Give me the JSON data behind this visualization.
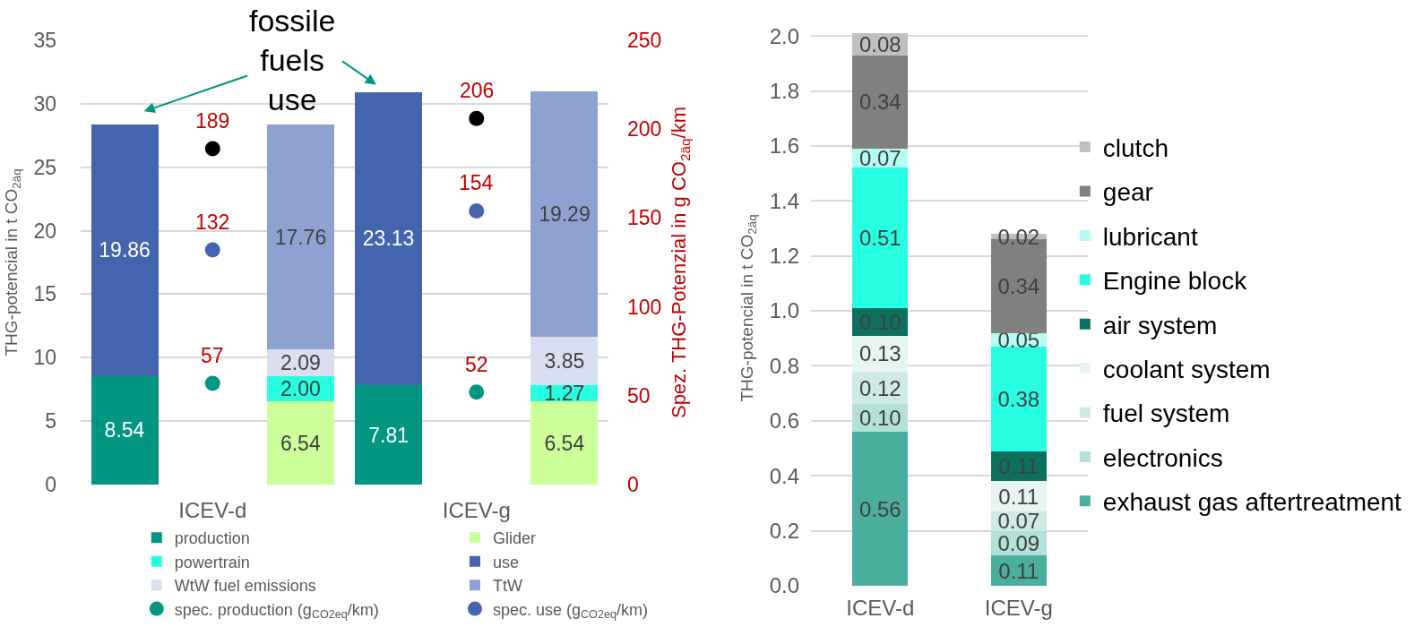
{
  "chart_data": [
    {
      "type": "bar",
      "stacked": true,
      "categories": [
        null,
        "ICEV-d",
        null,
        null,
        "ICEV-g",
        null
      ],
      "ylabel": "THG-potencial in t CO$_{2äq}$",
      "y2label": "Spez. THG-Potenzial in g CO$_{2äq}$/km",
      "ylim": [
        0,
        35
      ],
      "yticks": [
        0,
        5,
        10,
        15,
        20,
        25,
        30,
        35
      ],
      "y2lim": [
        0,
        250
      ],
      "y2ticks": [
        0,
        50,
        100,
        150,
        200,
        250
      ],
      "grid": "y",
      "legend": "bottom",
      "annotations": [
        "fossile\nfuels\nuse"
      ],
      "series": [
        {
          "name": "production",
          "color": "#009681",
          "values": [
            8.54,
            null,
            null,
            7.81,
            null,
            null
          ],
          "value_labels": [
            "8.54",
            null,
            null,
            "7.81",
            null,
            null
          ]
        },
        {
          "name": "Glider",
          "color": "#ccff99",
          "values": [
            null,
            null,
            6.54,
            null,
            null,
            6.54
          ],
          "value_labels": [
            null,
            null,
            "6.54",
            null,
            null,
            "6.54"
          ]
        },
        {
          "name": "powertrain",
          "color": "#26ffe0",
          "values": [
            null,
            null,
            2.0,
            null,
            null,
            1.27
          ],
          "value_labels": [
            null,
            null,
            "2.00",
            null,
            null,
            "1.27"
          ]
        },
        {
          "name": "use",
          "color": "#4464ad",
          "values": [
            19.86,
            null,
            null,
            23.13,
            null,
            null
          ],
          "value_labels": [
            "19.86",
            null,
            null,
            "23.13",
            null,
            null
          ]
        },
        {
          "name": "WtW fuel emissions",
          "color": "#d9dff0",
          "values": [
            null,
            null,
            2.09,
            null,
            null,
            3.85
          ],
          "value_labels": [
            null,
            null,
            "2.09",
            null,
            null,
            "3.85"
          ]
        },
        {
          "name": "TtW",
          "color": "#8ea2d1",
          "values": [
            null,
            null,
            17.76,
            null,
            null,
            19.29
          ],
          "value_labels": [
            null,
            null,
            "17.76",
            null,
            null,
            "19.29"
          ]
        },
        {
          "name": "spec. production (g$_{CO2eq}$/km)",
          "type": "scatter",
          "axis": "y2",
          "marker": "circle",
          "color": "#009681",
          "values": [
            null,
            57,
            null,
            null,
            52,
            null
          ],
          "value_labels": [
            null,
            "57",
            null,
            null,
            "52",
            null
          ]
        },
        {
          "name": "spec. use (g$_{CO2eq}$/km)",
          "type": "scatter",
          "axis": "y2",
          "marker": "circle",
          "color": "#4464ad",
          "values": [
            null,
            132,
            null,
            null,
            154,
            null
          ],
          "value_labels": [
            null,
            "132",
            null,
            null,
            "154",
            null
          ]
        },
        {
          "type": "scatter",
          "axis": "y2",
          "marker": "circle",
          "color": "#000000",
          "values": [
            null,
            189,
            null,
            null,
            206,
            null
          ],
          "value_labels": [
            null,
            "189",
            null,
            null,
            "206",
            null
          ]
        }
      ]
    },
    {
      "type": "bar",
      "stacked": true,
      "categories": [
        "ICEV-d",
        "ICEV-g"
      ],
      "ylabel": "THG-potencial in t CO$_{2äq}$",
      "ylim": [
        0,
        2.02
      ],
      "yticks": [
        {
          "value": 0,
          "label": "0.0"
        },
        0.2,
        0.4,
        0.6,
        0.8,
        {
          "value": 1,
          "label": "1.0"
        },
        1.2,
        1.4,
        1.6,
        1.8,
        {
          "value": 2,
          "label": "2.0"
        }
      ],
      "grid": "y",
      "legend": "right",
      "series": [
        {
          "name": "exhaust gas aftertreatment",
          "color": "#4baf9f",
          "values": [
            0.56,
            0.11
          ],
          "value_labels": [
            "0.56",
            "0.11"
          ]
        },
        {
          "name": "electronics",
          "color": "#b3e0d9",
          "values": [
            0.1,
            0.09
          ],
          "value_labels": [
            "0.10",
            "0.09"
          ]
        },
        {
          "name": "fuel system",
          "color": "#cdeae5",
          "values": [
            0.12,
            0.07
          ],
          "value_labels": [
            "0.12",
            "0.07"
          ]
        },
        {
          "name": "coolant system",
          "color": "#e6f4f2",
          "values": [
            0.13,
            0.11
          ],
          "value_labels": [
            "0.13",
            "0.11"
          ]
        },
        {
          "name": "air system",
          "color": "#0d6f5f",
          "values": [
            0.1,
            0.11
          ],
          "value_labels": [
            "0.10",
            "0.11"
          ]
        },
        {
          "name": "Engine block",
          "color": "#26ffe2",
          "values": [
            0.51,
            0.38
          ],
          "value_labels": [
            "0.51",
            "0.38"
          ]
        },
        {
          "name": "lubricant",
          "color": "#b5fdf4",
          "values": [
            0.07,
            0.05
          ],
          "value_labels": [
            "0.07",
            "0.05"
          ]
        },
        {
          "name": "gear",
          "color": "#808080",
          "values": [
            0.34,
            0.34
          ],
          "value_labels": [
            "0.34",
            "0.34"
          ]
        },
        {
          "name": "clutch",
          "color": "#bfbfbf",
          "values": [
            0.08,
            0.02
          ],
          "value_labels": [
            "0.08",
            "0.02"
          ]
        }
      ]
    }
  ]
}
